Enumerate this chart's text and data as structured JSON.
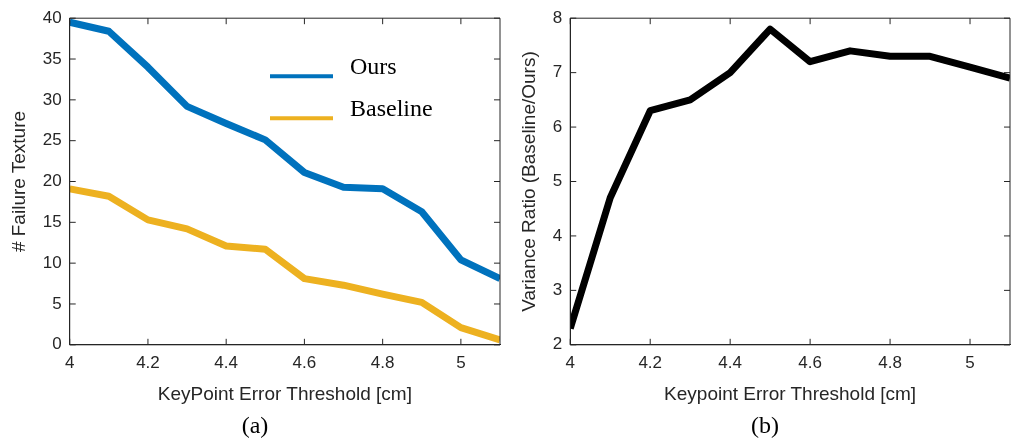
{
  "chart_data": [
    {
      "type": "line",
      "xlabel": "KeyPoint Error Threshold [cm]",
      "ylabel": "# Failure Texture",
      "annotations": [
        "(a)"
      ],
      "x": [
        4,
        4.1,
        4.2,
        4.3,
        4.4,
        4.5,
        4.6,
        4.7,
        4.8,
        4.9,
        5,
        5.1
      ],
      "series": [
        {
          "name": "Ours",
          "color": "#0072bd",
          "values": [
            39.5,
            38.4,
            34,
            29.2,
            27.1,
            25.1,
            21.1,
            19.3,
            19.1,
            16.3,
            10.4,
            8.1
          ]
        },
        {
          "name": "Baseline",
          "color": "#edb120",
          "values": [
            19.1,
            18.2,
            15.3,
            14.2,
            12.1,
            11.7,
            8.1,
            7.3,
            6.2,
            5.2,
            2.1,
            0.6
          ]
        }
      ],
      "xlim": [
        4,
        5.1
      ],
      "xticks": [
        4,
        4.2,
        4.4,
        4.6,
        4.8,
        5
      ],
      "ylim": [
        0,
        40
      ],
      "yticks": [
        0,
        5,
        10,
        15,
        20,
        25,
        30,
        35,
        40
      ],
      "grid": false,
      "legend": "top right",
      "marker": "none",
      "line_style": "solid"
    },
    {
      "type": "line",
      "xlabel": "Keypoint Error Threshold [cm]",
      "ylabel": "Variance Ratio (Baseline/Ours)",
      "annotations": [
        "(b)"
      ],
      "x": [
        4,
        4.1,
        4.2,
        4.3,
        4.4,
        4.5,
        4.6,
        4.7,
        4.8,
        4.9,
        5,
        5.1
      ],
      "series": [
        {
          "color": "#000000",
          "values": [
            2.3,
            4.7,
            6.3,
            6.5,
            7.0,
            7.8,
            7.2,
            7.4,
            7.3,
            7.3,
            7.1,
            6.9
          ]
        }
      ],
      "xlim": [
        4,
        5.1
      ],
      "xticks": [
        4,
        4.2,
        4.4,
        4.6,
        4.8,
        5
      ],
      "ylim": [
        2,
        8
      ],
      "yticks": [
        2,
        3,
        4,
        5,
        6,
        7,
        8
      ],
      "grid": false,
      "legend": false,
      "marker": "none",
      "line_style": "solid"
    }
  ]
}
